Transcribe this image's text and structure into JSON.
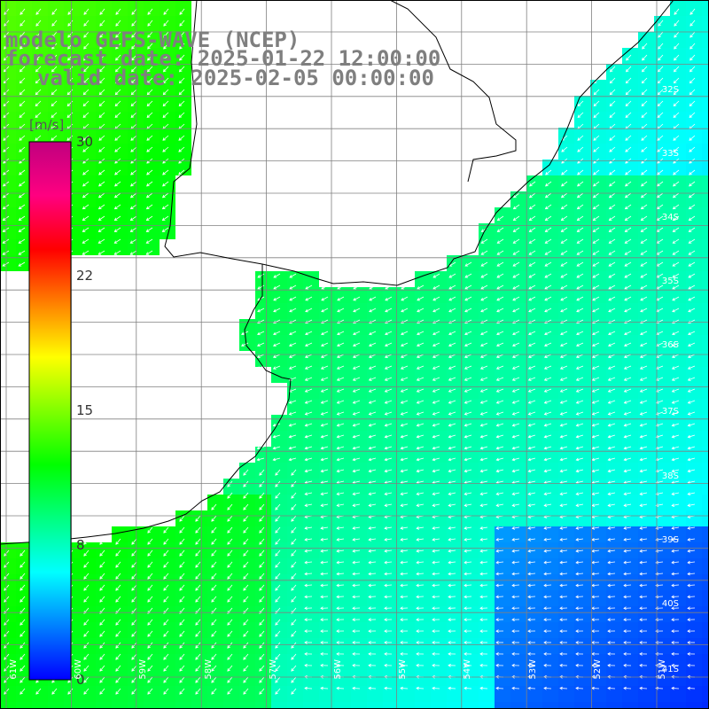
{
  "title": {
    "line1": "modelo GEFS-WAVE (NCEP)",
    "line2": "forecast date: 2025-01-22 12:00:00",
    "line3": "valid date: 2025-02-05 00:00:00"
  },
  "colorbar": {
    "unit": "[m/s]",
    "ticks": [
      {
        "label": "30",
        "value": 30
      },
      {
        "label": "22",
        "value": 22
      },
      {
        "label": "15",
        "value": 15
      },
      {
        "label": "8",
        "value": 8
      },
      {
        "label": "0",
        "value": 0
      }
    ],
    "range": [
      0,
      30
    ],
    "colors": [
      "#0000ff",
      "#0080ff",
      "#00ffff",
      "#00ff80",
      "#00ff00",
      "#80ff00",
      "#ffff00",
      "#ff8000",
      "#ff0000",
      "#ff0080",
      "#c0007f"
    ]
  },
  "latitude_labels": [
    "32S",
    "33S",
    "34S",
    "35S",
    "36S",
    "37S",
    "38S",
    "39S",
    "40S",
    "41S"
  ],
  "longitude_labels": [
    "61W",
    "60W",
    "59W",
    "58W",
    "57W",
    "56W",
    "55W",
    "54W",
    "53W",
    "52W",
    "51W"
  ],
  "map": {
    "grid": true,
    "arrow_color": "#ffffff",
    "land_color": "#ffffff",
    "coast_color": "#000000"
  }
}
